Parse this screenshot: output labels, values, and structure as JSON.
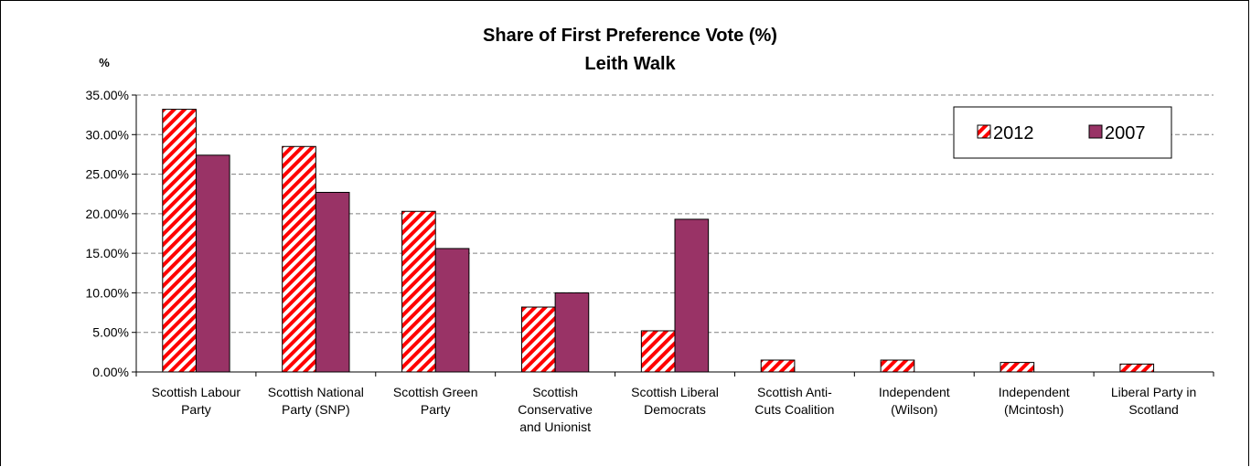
{
  "chart_data": {
    "type": "bar",
    "title": "Share of First Preference Vote (%)",
    "subtitle": "Leith Walk",
    "ylabel": "%",
    "xlabel": "",
    "ylim": [
      0,
      0.35
    ],
    "yticks": [
      "0.00%",
      "5.00%",
      "10.00%",
      "15.00%",
      "20.00%",
      "25.00%",
      "30.00%",
      "35.00%"
    ],
    "grid": true,
    "legend_position": "top-right",
    "categories": [
      [
        "Scottish Labour",
        "Party"
      ],
      [
        "Scottish National",
        "Party (SNP)"
      ],
      [
        "Scottish Green",
        "Party"
      ],
      [
        "Scottish",
        "Conservative",
        "and Unionist"
      ],
      [
        "Scottish Liberal",
        "Democrats"
      ],
      [
        "Scottish Anti-",
        "Cuts Coalition"
      ],
      [
        "Independent",
        "(Wilson)"
      ],
      [
        "Independent",
        "(Mcintosh)"
      ],
      [
        "Liberal Party in",
        "Scotland"
      ]
    ],
    "series": [
      {
        "name": "2012",
        "pattern": "hatched",
        "color": "#ff0000",
        "values": [
          0.332,
          0.285,
          0.203,
          0.082,
          0.052,
          0.015,
          0.015,
          0.012,
          0.01
        ]
      },
      {
        "name": "2007",
        "pattern": "solid",
        "color": "#993366",
        "values": [
          0.274,
          0.227,
          0.156,
          0.1,
          0.193,
          0,
          0,
          0,
          0
        ]
      }
    ]
  }
}
